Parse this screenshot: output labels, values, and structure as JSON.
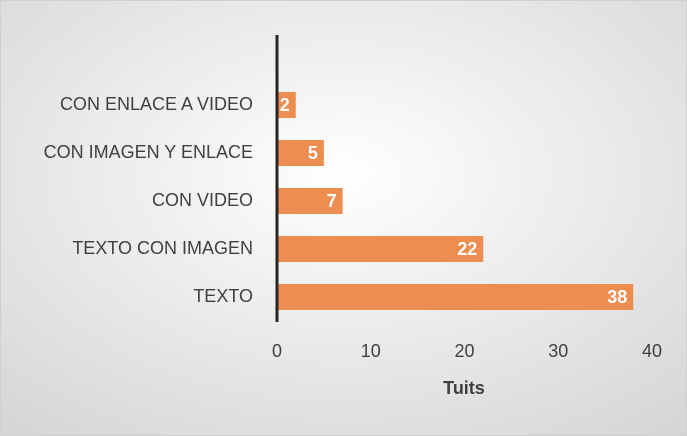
{
  "chart_data": {
    "type": "bar",
    "orientation": "horizontal",
    "categories": [
      "CON ENLACE A VIDEO",
      "CON IMAGEN Y ENLACE",
      "CON VIDEO",
      "TEXTO CON IMAGEN",
      "TEXTO"
    ],
    "values": [
      2,
      5,
      7,
      22,
      38
    ],
    "color": "#ed8d4f",
    "xlim": [
      0,
      40
    ],
    "xticks": [
      0,
      10,
      20,
      30,
      40
    ],
    "x_label": "Tuits",
    "grid": false
  }
}
